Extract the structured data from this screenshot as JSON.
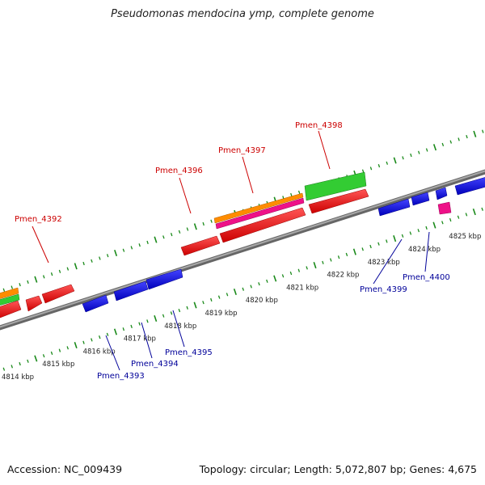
{
  "title": "Pseudomonas mendocina ymp, complete genome",
  "footer": {
    "accession": "Accession: NC_009439",
    "summary": "Topology: circular; Length: 5,072,807 bp; Genes: 4,675"
  },
  "colors": {
    "backbone": "#808080",
    "tick": "#1a8a1a",
    "forward_gene": "#ee0000",
    "reverse_gene": "#1010ee",
    "orange_feature": "#ff8c00",
    "magenta_feature": "#ee1188",
    "green_feature": "#33cc33",
    "forward_label": "#cc0000",
    "reverse_label": "#000099"
  },
  "scale": {
    "unit": "kbp",
    "ticks": [
      {
        "value": 4814,
        "label": "4814 kbp"
      },
      {
        "value": 4815,
        "label": "4815 kbp"
      },
      {
        "value": 4816,
        "label": "4816 kbp"
      },
      {
        "value": 4817,
        "label": "4817 kbp"
      },
      {
        "value": 4818,
        "label": "4818 kbp"
      },
      {
        "value": 4819,
        "label": "4819 kbp"
      },
      {
        "value": 4820,
        "label": "4820 kbp"
      },
      {
        "value": 4821,
        "label": "4821 kbp"
      },
      {
        "value": 4822,
        "label": "4822 kbp"
      },
      {
        "value": 4823,
        "label": "4823 kbp"
      },
      {
        "value": 4824,
        "label": "4824 kbp"
      },
      {
        "value": 4825,
        "label": "4825 kbp"
      }
    ]
  },
  "genes": {
    "forward": [
      {
        "name": "Pmen_4392"
      },
      {
        "name": "Pmen_4396"
      },
      {
        "name": "Pmen_4397"
      },
      {
        "name": "Pmen_4398"
      }
    ],
    "reverse": [
      {
        "name": "Pmen_4393"
      },
      {
        "name": "Pmen_4394"
      },
      {
        "name": "Pmen_4395"
      },
      {
        "name": "Pmen_4399"
      },
      {
        "name": "Pmen_4400"
      }
    ]
  }
}
